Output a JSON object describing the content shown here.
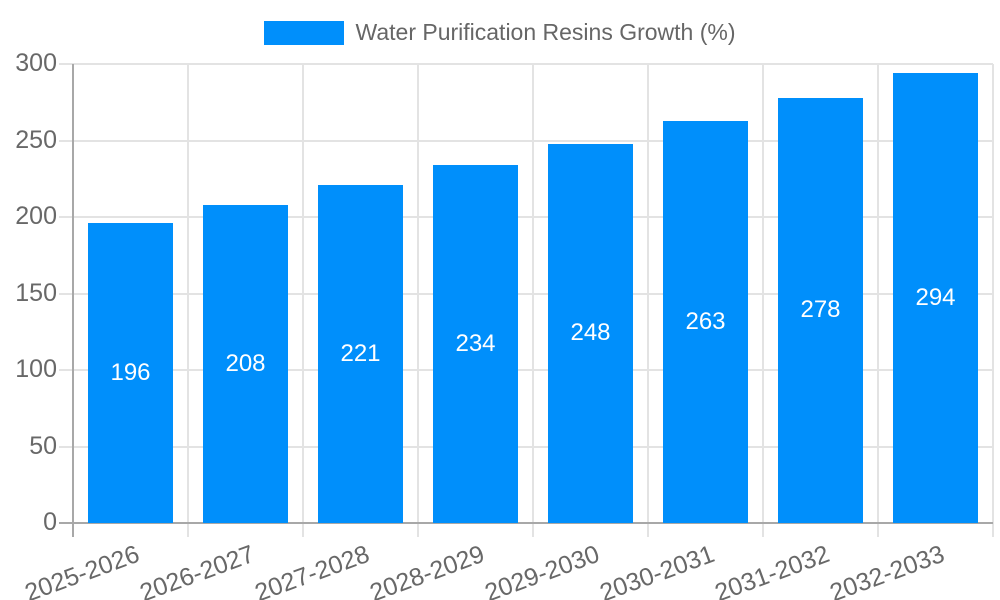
{
  "chart_data": {
    "type": "bar",
    "title": "Water Purification Resins Growth (%)",
    "categories": [
      "2025-2026",
      "2026-2027",
      "2027-2028",
      "2028-2029",
      "2029-2030",
      "2030-2031",
      "2031-2032",
      "2032-2033"
    ],
    "series": [
      {
        "name": "Water Purification Resins Growth (%)",
        "values": [
          196,
          208,
          221,
          234,
          248,
          263,
          278,
          294
        ]
      }
    ],
    "values": [
      196,
      208,
      221,
      234,
      248,
      263,
      278,
      294
    ],
    "value_labels": [
      "196",
      "208",
      "221",
      "234",
      "248",
      "263",
      "278",
      "294"
    ],
    "xlabel": "",
    "ylabel": "",
    "ylim": [
      0,
      300
    ],
    "ytick_step": 50,
    "yticks": [
      0,
      50,
      100,
      150,
      200,
      250,
      300
    ],
    "legend_position": "top",
    "grid": true,
    "colors": {
      "bar": "#008FFB",
      "bar_value_text": "#ffffff",
      "grid_line": "#e3e3e3",
      "axis_line": "#a8a8a8",
      "tick_label": "#686868",
      "legend_text": "#666666",
      "background": "#ffffff"
    }
  }
}
